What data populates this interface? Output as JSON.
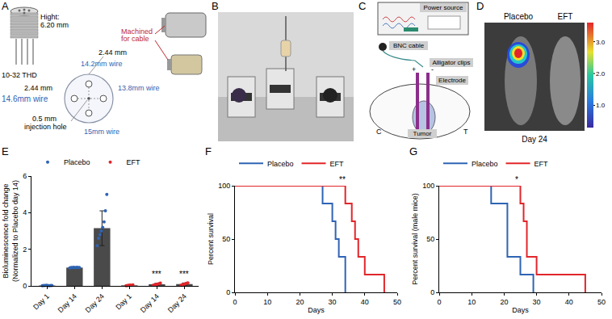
{
  "panels": {
    "A": {
      "label": "A",
      "height_label": "Hight:",
      "height": "6.20 mm",
      "thread": "10-32 THD",
      "machined": [
        "Machined",
        "for cable"
      ],
      "spacing_top": "2.44 mm",
      "spacing_left": "2.44 mm",
      "wires": [
        "14.2mm wire",
        "14.6mm wire",
        "13.8mm wire",
        "15mm wire"
      ],
      "hole": [
        "0.5 mm",
        "injection hole"
      ]
    },
    "B": {
      "label": "B"
    },
    "C": {
      "label": "C",
      "power": "Power source",
      "cable": "BNC cable",
      "clips": "Alligator clips",
      "electrode": "Electrode",
      "tumor": "Tumor",
      "sides": [
        "C",
        "T"
      ],
      "poles": [
        "+",
        "-"
      ]
    },
    "D": {
      "label": "D",
      "groups": [
        "Placebo",
        "EFT"
      ],
      "day": "Day 24",
      "colorbar": {
        "range": [
          0.3,
          3.6
        ],
        "ticks": [
          {
            "value": 1,
            "label": "1.0"
          },
          {
            "value": 2,
            "label": "2.0"
          },
          {
            "value": 3,
            "label": "3.0"
          }
        ]
      }
    }
  },
  "chart_data": [
    {
      "type": "bar",
      "panel": "E",
      "ylabel": "Bioluminescence fold change\n(Normalized to Placebo day 14)",
      "categories": [
        "Day 1",
        "Day 14",
        "Day 24",
        "Day 1",
        "Day 14",
        "Day 24"
      ],
      "color": "#4a4a4a",
      "ylim": [
        0,
        6
      ],
      "yticks": [
        0,
        2,
        4,
        6
      ],
      "grid": false,
      "legend": "top",
      "series": [
        {
          "name": "Placebo",
          "color": "#2f64b4",
          "values": [
            0.02,
            1.0,
            3.15,
            null,
            null,
            null
          ],
          "error": [
            0.01,
            0.02,
            0.95,
            null,
            null,
            null
          ],
          "points": [
            [
              0.01,
              0.02,
              0.02,
              0.03,
              0.02,
              0.01,
              0.02,
              0.02
            ],
            [
              0.98,
              1.0,
              1.0,
              1.02,
              0.99,
              1.01,
              1.0,
              1.0
            ],
            [
              2.2,
              2.6,
              2.8,
              3.0,
              3.2,
              3.5,
              4.1,
              5.0
            ],
            null,
            null,
            null
          ]
        },
        {
          "name": "EFT",
          "color": "#e2262b",
          "values": [
            null,
            null,
            null,
            0.03,
            0.09,
            0.1
          ],
          "error": [
            null,
            null,
            null,
            0.02,
            0.05,
            0.06
          ],
          "points": [
            null,
            null,
            null,
            [
              0.01,
              0.02,
              0.03,
              0.04,
              0.03,
              0.05
            ],
            [
              0.04,
              0.06,
              0.08,
              0.1,
              0.12,
              0.15
            ],
            [
              0.03,
              0.06,
              0.09,
              0.11,
              0.14,
              0.17
            ]
          ]
        }
      ],
      "annotations": [
        {
          "text": "***",
          "x": 4,
          "y": 0.3
        },
        {
          "text": "***",
          "x": 5,
          "y": 0.3
        }
      ]
    },
    {
      "type": "line",
      "panel": "F",
      "line_style": "step",
      "xlabel": "Days",
      "ylabel": "Percent survival",
      "xlim": [
        0,
        50
      ],
      "xticks": [
        0,
        10,
        20,
        30,
        40,
        50
      ],
      "ylim": [
        0,
        100
      ],
      "yticks": [
        0,
        50,
        100
      ],
      "grid": false,
      "legend": "top",
      "series": [
        {
          "name": "Placebo",
          "color": "#2f64b4",
          "x": [
            0,
            27,
            30,
            31,
            32,
            34
          ],
          "values": [
            100,
            83.3,
            66.7,
            50,
            33.3,
            0
          ]
        },
        {
          "name": "EFT",
          "color": "#e2262b",
          "x": [
            0,
            34,
            36,
            37,
            38,
            40,
            46
          ],
          "values": [
            100,
            83.3,
            66.7,
            50,
            33.3,
            16.7,
            0
          ]
        }
      ],
      "annotations": [
        {
          "text": "**",
          "x": 33,
          "y": 100
        }
      ]
    },
    {
      "type": "line",
      "panel": "G",
      "line_style": "step",
      "xlabel": "Days",
      "ylabel": "Percent survival (male mice)",
      "xlim": [
        0,
        50
      ],
      "xticks": [
        0,
        10,
        20,
        30,
        40,
        50
      ],
      "ylim": [
        0,
        100
      ],
      "yticks": [
        0,
        50,
        100
      ],
      "grid": false,
      "legend": "top",
      "series": [
        {
          "name": "Placebo",
          "color": "#2f64b4",
          "x": [
            0,
            16,
            21,
            25,
            29
          ],
          "values": [
            100,
            83.3,
            33.3,
            16.7,
            0
          ]
        },
        {
          "name": "EFT",
          "color": "#e2262b",
          "x": [
            0,
            25,
            26,
            27,
            30,
            45
          ],
          "values": [
            100,
            83.3,
            66.7,
            33.3,
            16.7,
            0
          ]
        }
      ],
      "annotations": [
        {
          "text": "*",
          "x": 24,
          "y": 100
        }
      ]
    }
  ]
}
